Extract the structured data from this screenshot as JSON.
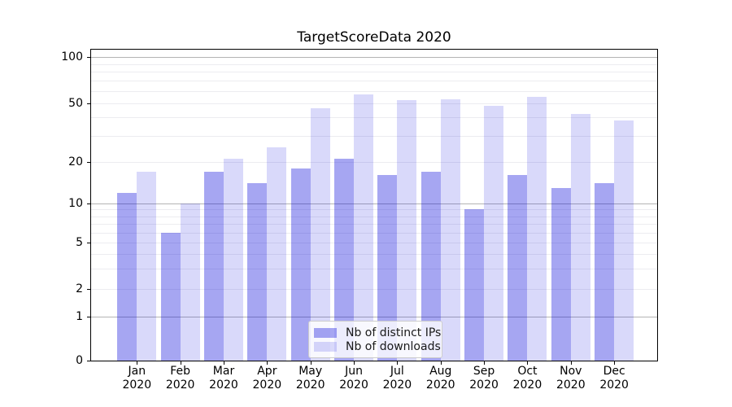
{
  "title": "TargetScoreData 2020",
  "chart_data": {
    "type": "bar",
    "title": "TargetScoreData 2020",
    "categories": [
      "Jan 2020",
      "Feb 2020",
      "Mar 2020",
      "Apr 2020",
      "May 2020",
      "Jun 2020",
      "Jul 2020",
      "Aug 2020",
      "Sep 2020",
      "Oct 2020",
      "Nov 2020",
      "Dec 2020"
    ],
    "series": [
      {
        "name": "Nb of distinct IPs",
        "color": "rgba(0,0,218,0.35)",
        "color_hex": "#a6a6f2",
        "values": [
          12,
          6,
          17,
          14,
          18,
          21,
          16,
          17,
          9,
          16,
          13,
          14
        ]
      },
      {
        "name": "Nb of downloads",
        "color": "rgba(0,0,222,0.15)",
        "color_hex": "#d9d9fa",
        "values": [
          17,
          10,
          21,
          25,
          46,
          57,
          52,
          53,
          48,
          55,
          42,
          38
        ]
      }
    ],
    "yscale": "symlog",
    "y_ticks": [
      0,
      1,
      2,
      5,
      10,
      20,
      50,
      100
    ],
    "y_minor_gridlines": [
      2,
      3,
      4,
      5,
      6,
      7,
      8,
      9,
      20,
      30,
      40,
      50,
      60,
      70,
      80,
      90
    ],
    "y_major_gridlines": [
      1,
      10,
      100
    ],
    "ylim": [
      0,
      113
    ],
    "grid": true,
    "legend_position": "lower center"
  },
  "colors": {
    "major_grid": "#b4b4b4",
    "minor_grid": "#ececf0",
    "axis": "#000000",
    "legend_border": "#cccccc",
    "legend_bg": "rgba(255,255,255,0.8)",
    "text": "#000000"
  }
}
